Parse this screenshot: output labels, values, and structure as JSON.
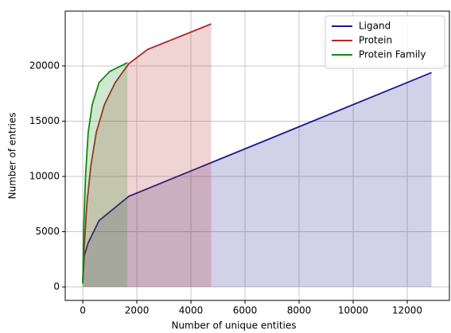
{
  "chart_data": {
    "type": "area",
    "xlabel": "Number of unique entities",
    "ylabel": "Number of entries",
    "xlim": [
      -650,
      13560
    ],
    "ylim": [
      -1220,
      24960
    ],
    "xticks": [
      0,
      2000,
      4000,
      6000,
      8000,
      10000,
      12000
    ],
    "yticks": [
      0,
      5000,
      10000,
      15000,
      20000
    ],
    "grid": true,
    "legend": "upper right",
    "series": [
      {
        "name": "Ligand",
        "color": "#1a1a8c",
        "x": [
          0,
          50,
          200,
          600,
          1000,
          1700,
          12900
        ],
        "values": [
          400,
          2800,
          4000,
          6000,
          6800,
          8200,
          19400
        ]
      },
      {
        "name": "Protein",
        "color": "#b22727",
        "x": [
          0,
          50,
          150,
          300,
          500,
          800,
          1200,
          1700,
          2400,
          4750
        ],
        "values": [
          500,
          3500,
          7500,
          11000,
          14000,
          16500,
          18500,
          20200,
          21500,
          23800
        ]
      },
      {
        "name": "Protein Family",
        "color": "#138a13",
        "x": [
          0,
          30,
          100,
          200,
          350,
          600,
          1000,
          1650
        ],
        "values": [
          300,
          5000,
          10000,
          14000,
          16500,
          18500,
          19500,
          20300
        ]
      }
    ]
  }
}
